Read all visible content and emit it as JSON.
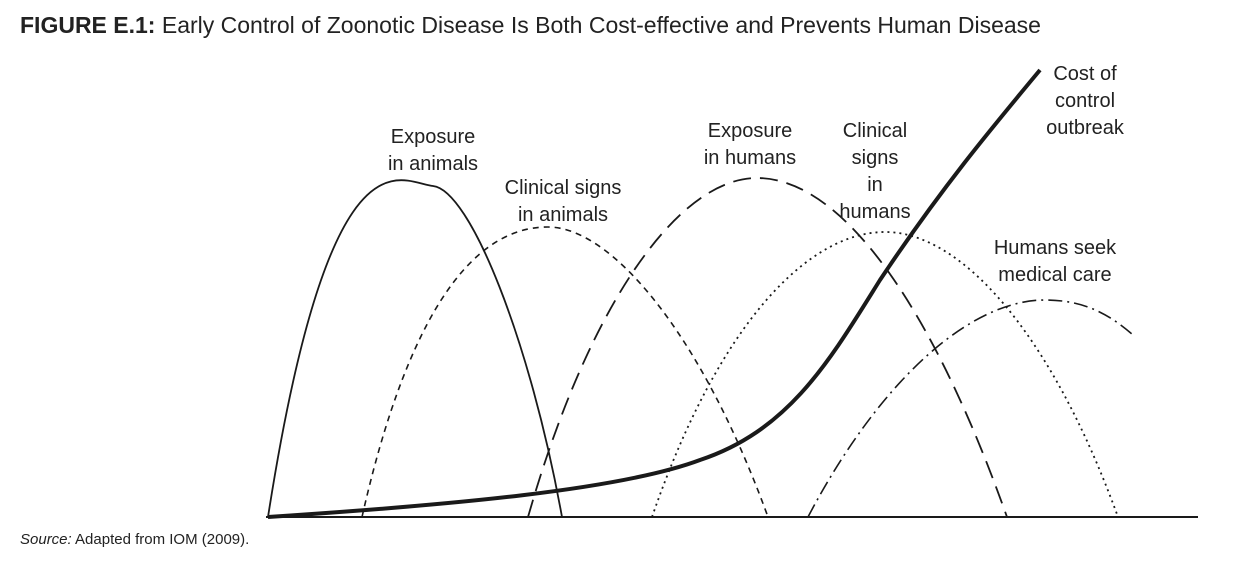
{
  "figure": {
    "label": "FIGURE E.1:",
    "title": "Early Control of Zoonotic Disease Is Both Cost-effective and Prevents Human Disease"
  },
  "curves": [
    {
      "label": [
        "Exposure",
        "in animals"
      ]
    },
    {
      "label": [
        "Clinical signs",
        "in animals"
      ]
    },
    {
      "label": [
        "Exposure",
        "in humans"
      ]
    },
    {
      "label": [
        "Clinical",
        "signs",
        "in",
        "humans"
      ]
    },
    {
      "label": [
        "Humans seek",
        "medical care"
      ]
    },
    {
      "label": [
        "Cost of",
        "control",
        "outbreak"
      ]
    }
  ],
  "source": {
    "label": "Source:",
    "text": "Adapted from IOM (2009)."
  }
}
